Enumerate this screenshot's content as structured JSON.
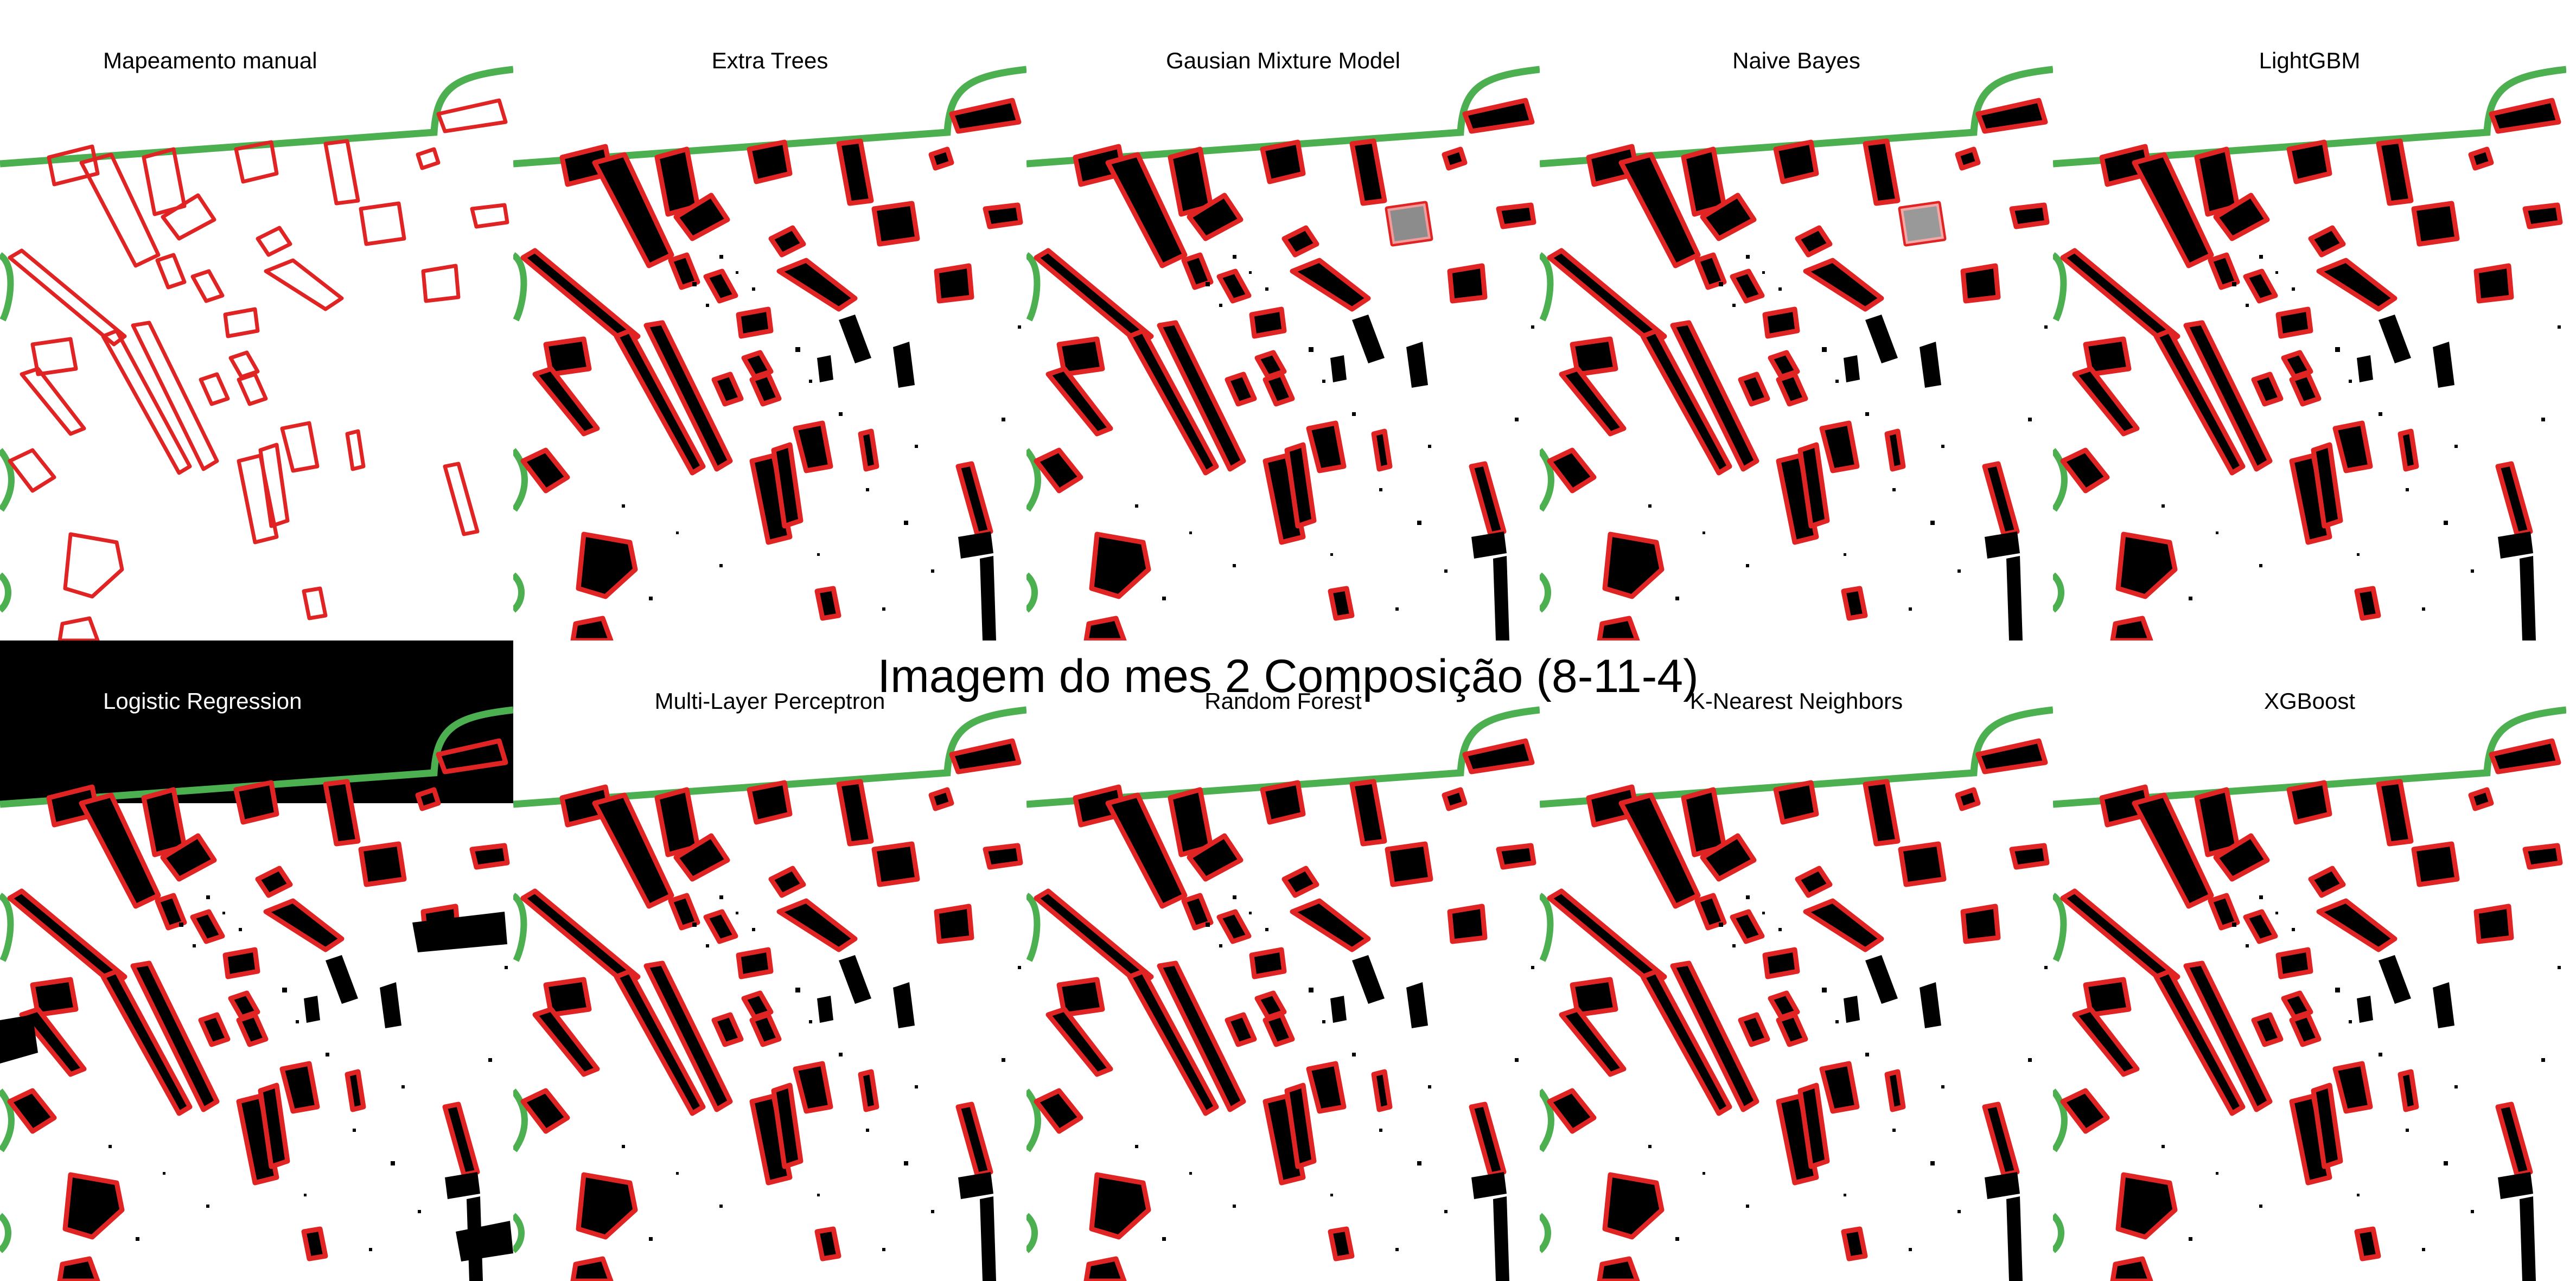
{
  "figure": {
    "title": "Imagem do mes 2 Composição (8-11-4)",
    "colors": {
      "reference_outline": "#e02424",
      "boundary_line": "#4caf50",
      "predicted_fill": "#000000",
      "background": "#ffffff"
    },
    "panels": [
      {
        "title": "Mapeamento manual",
        "style": "outline"
      },
      {
        "title": "Extra Trees",
        "style": "prediction"
      },
      {
        "title": "Gausian Mixture Model",
        "style": "prediction"
      },
      {
        "title": "Naive Bayes",
        "style": "prediction"
      },
      {
        "title": "LightGBM",
        "style": "prediction"
      },
      {
        "title": "Logistic Regression",
        "style": "prediction-dark"
      },
      {
        "title": "Multi-Layer Perceptron",
        "style": "prediction"
      },
      {
        "title": "Random Forest",
        "style": "prediction"
      },
      {
        "title": "K-Nearest Neighbors",
        "style": "prediction"
      },
      {
        "title": "XGBoost",
        "style": "prediction"
      }
    ]
  }
}
